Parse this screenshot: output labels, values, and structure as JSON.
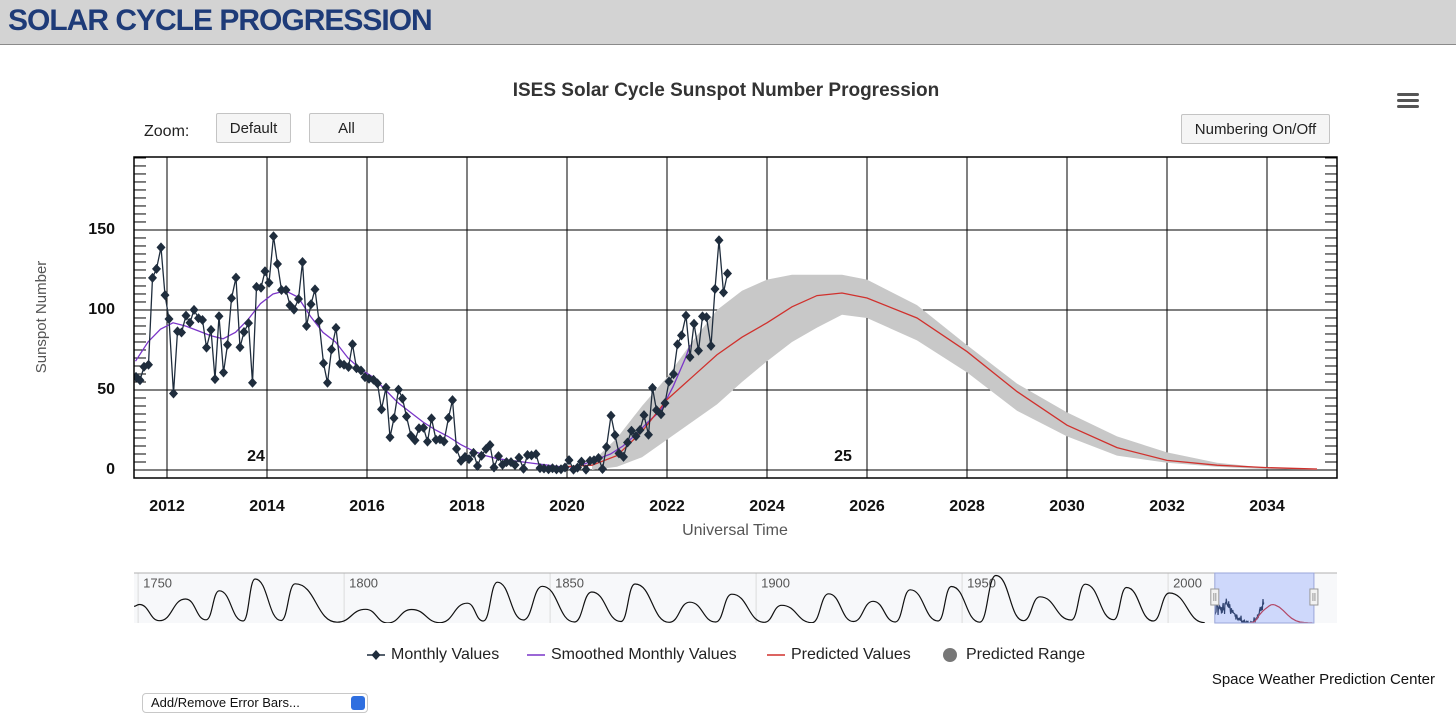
{
  "header": {
    "title": "SOLAR CYCLE PROGRESSION"
  },
  "chart_data": [
    {
      "type": "line",
      "title": "ISES Solar Cycle Sunspot Number Progression",
      "zoom_label": "Zoom:",
      "buttons": [
        "Default",
        "All",
        "Numbering On/Off"
      ],
      "y_label": "Sunspot Number",
      "x_label": "Universal Time",
      "annotations": [
        "24",
        "25"
      ],
      "credits": "Space Weather Prediction Center",
      "dropdown": "Add/Remove Error Bars...",
      "xlim": [
        2011.34,
        2035.4
      ],
      "xticks": [
        2012,
        2014,
        2016,
        2018,
        2020,
        2022,
        2024,
        2026,
        2028,
        2030,
        2032,
        2034
      ],
      "ylim": [
        -5,
        195.6
      ],
      "yticks": [
        0,
        50,
        100,
        150
      ],
      "grid": true,
      "series": [
        {
          "name": "Monthly Values",
          "color": "#1f2d3d",
          "x": [
            2011.38,
            2011.46,
            2011.54,
            2011.63,
            2011.71,
            2011.79,
            2011.88,
            2011.96,
            2012.04,
            2012.13,
            2012.21,
            2012.29,
            2012.38,
            2012.46,
            2012.54,
            2012.63,
            2012.71,
            2012.79,
            2012.88,
            2012.96,
            2013.04,
            2013.13,
            2013.21,
            2013.29,
            2013.38,
            2013.46,
            2013.54,
            2013.63,
            2013.71,
            2013.79,
            2013.88,
            2013.96,
            2014.04,
            2014.13,
            2014.21,
            2014.29,
            2014.38,
            2014.46,
            2014.54,
            2014.63,
            2014.71,
            2014.79,
            2014.88,
            2014.96,
            2015.04,
            2015.13,
            2015.21,
            2015.29,
            2015.38,
            2015.46,
            2015.54,
            2015.63,
            2015.71,
            2015.79,
            2015.88,
            2015.96,
            2016.04,
            2016.13,
            2016.21,
            2016.29,
            2016.38,
            2016.46,
            2016.54,
            2016.63,
            2016.71,
            2016.79,
            2016.88,
            2016.96,
            2017.04,
            2017.13,
            2017.21,
            2017.29,
            2017.38,
            2017.46,
            2017.54,
            2017.63,
            2017.71,
            2017.79,
            2017.88,
            2017.96,
            2018.04,
            2018.13,
            2018.21,
            2018.29,
            2018.38,
            2018.46,
            2018.54,
            2018.63,
            2018.71,
            2018.79,
            2018.88,
            2018.96,
            2019.04,
            2019.13,
            2019.21,
            2019.29,
            2019.38,
            2019.46,
            2019.54,
            2019.63,
            2019.71,
            2019.79,
            2019.88,
            2019.96,
            2020.04,
            2020.13,
            2020.21,
            2020.29,
            2020.38,
            2020.46,
            2020.54,
            2020.63,
            2020.71,
            2020.79,
            2020.88,
            2020.96,
            2021.04,
            2021.13,
            2021.21,
            2021.29,
            2021.38,
            2021.46,
            2021.54,
            2021.63,
            2021.71,
            2021.79,
            2021.88,
            2021.96,
            2022.04,
            2022.13,
            2022.21,
            2022.29,
            2022.38,
            2022.46,
            2022.54,
            2022.63,
            2022.71,
            2022.79,
            2022.88,
            2022.96,
            2023.04,
            2023.13,
            2023.21
          ],
          "values": [
            58.2,
            56.1,
            64.5,
            65.8,
            120.1,
            125.7,
            139.1,
            109.3,
            94.4,
            47.8,
            86.6,
            85.9,
            96.5,
            92.0,
            100.1,
            94.8,
            93.7,
            76.5,
            87.6,
            56.8,
            96.1,
            60.9,
            78.3,
            107.3,
            120.2,
            76.7,
            86.2,
            91.8,
            54.5,
            114.4,
            113.9,
            124.2,
            117.0,
            146.1,
            128.7,
            112.5,
            112.5,
            102.9,
            100.2,
            106.9,
            130.0,
            90.0,
            103.6,
            112.9,
            93.0,
            66.7,
            54.5,
            75.3,
            88.8,
            66.5,
            65.8,
            64.4,
            78.6,
            63.6,
            62.2,
            58.0,
            57.0,
            56.4,
            54.1,
            37.9,
            51.5,
            20.5,
            32.4,
            50.2,
            44.6,
            33.4,
            21.4,
            18.5,
            26.1,
            26.4,
            17.7,
            32.3,
            18.9,
            19.2,
            17.8,
            32.6,
            43.7,
            13.2,
            5.7,
            8.2,
            6.8,
            10.7,
            2.5,
            8.9,
            13.1,
            15.6,
            1.6,
            8.7,
            3.3,
            4.9,
            4.9,
            3.1,
            7.7,
            0.8,
            9.4,
            9.1,
            9.9,
            1.2,
            0.9,
            0.5,
            1.1,
            0.4,
            0.5,
            1.6,
            6.2,
            0.2,
            1.5,
            5.2,
            0.2,
            5.8,
            6.1,
            7.5,
            0.6,
            14.4,
            34.0,
            21.8,
            10.4,
            8.2,
            17.2,
            24.5,
            21.2,
            25.0,
            34.3,
            22.0,
            51.3,
            37.4,
            34.8,
            41.8,
            55.3,
            59.9,
            78.5,
            84.1,
            96.5,
            70.5,
            91.4,
            74.6,
            96.0,
            95.5,
            77.6,
            113.1,
            143.6,
            110.9,
            122.8
          ]
        },
        {
          "name": "Smoothed Monthly Values",
          "color": "#7a35c8",
          "x": [
            2011.37,
            2011.62,
            2011.87,
            2012.12,
            2012.37,
            2012.62,
            2012.87,
            2013.12,
            2013.37,
            2013.62,
            2013.87,
            2014.12,
            2014.37,
            2014.62,
            2014.87,
            2015.12,
            2015.37,
            2015.62,
            2015.87,
            2016.12,
            2016.37,
            2016.62,
            2016.87,
            2017.12,
            2017.37,
            2017.62,
            2017.87,
            2018.12,
            2018.37,
            2018.62,
            2018.87,
            2019.12,
            2019.37,
            2019.62,
            2019.87,
            2020.12,
            2020.37,
            2020.62,
            2020.87,
            2021.12,
            2021.37,
            2021.62,
            2021.87,
            2022.12,
            2022.37,
            2022.46
          ],
          "values": [
            68,
            80,
            88,
            92,
            90,
            87,
            84,
            82,
            86,
            94,
            104,
            110,
            112,
            108,
            96,
            86,
            80,
            70,
            63,
            58,
            50,
            42,
            36,
            30,
            25,
            21,
            16,
            12,
            9,
            7,
            6,
            5,
            4,
            3,
            2,
            2,
            4,
            7,
            10,
            15,
            22,
            30,
            37,
            52,
            70,
            78
          ]
        },
        {
          "name": "Predicted Values",
          "color": "#d0312d",
          "x": [
            2019.9,
            2020.5,
            2021,
            2021.5,
            2022,
            2022.5,
            2023,
            2023.5,
            2024,
            2024.5,
            2025,
            2025.5,
            2026,
            2027,
            2028,
            2029,
            2030,
            2031,
            2032,
            2033,
            2034,
            2035
          ],
          "values": [
            2,
            3,
            9,
            24,
            44,
            58,
            72,
            83,
            92,
            102,
            109,
            110.6,
            107.5,
            95,
            74,
            49,
            28,
            14,
            6,
            3,
            1.5,
            0.6
          ]
        },
        {
          "name": "Predicted Range",
          "color": "#c8c8c8",
          "legend_color": "#777777",
          "x": [
            2020.5,
            2021,
            2021.5,
            2022,
            2022.5,
            2023,
            2023.5,
            2024,
            2024.5,
            2025,
            2025.5,
            2026,
            2027,
            2028,
            2029,
            2030,
            2031,
            2032,
            2033,
            2034,
            2035
          ],
          "low": [
            0,
            2,
            8,
            19,
            30,
            41,
            55,
            68,
            80,
            89,
            97,
            95,
            81,
            61,
            37,
            21,
            9,
            4.5,
            2,
            0.5,
            0
          ],
          "high": [
            5,
            20,
            40,
            58,
            80,
            100,
            112,
            119,
            122,
            122,
            122,
            119,
            103,
            78,
            54,
            36,
            21,
            11,
            4.5,
            1.3,
            0.5
          ]
        }
      ]
    },
    {
      "type": "line",
      "xlim": [
        1749,
        2041
      ],
      "ylim": [
        0,
        300
      ],
      "xticks": [
        1750,
        1800,
        1850,
        1900,
        1950,
        2000
      ],
      "series": [
        {
          "color": "#111111",
          "x": [
            1749,
            1750.3,
            1755.2,
            1761.5,
            1766.5,
            1769.7,
            1775.5,
            1778.4,
            1784.7,
            1788.1,
            1798.3,
            1805.2,
            1810.6,
            1816.4,
            1823.3,
            1829.9,
            1833.8,
            1837.2,
            1843.5,
            1848.1,
            1855.9,
            1860.1,
            1867.2,
            1870.6,
            1878.9,
            1883.9,
            1890.2,
            1894.1,
            1902.0,
            1906.2,
            1913.6,
            1917.6,
            1923.6,
            1928.4,
            1933.8,
            1937.4,
            1944.2,
            1947.4,
            1954.3,
            1958.2,
            1964.9,
            1968.9,
            1976.5,
            1979.9,
            1986.8,
            1989.9,
            1996.4,
            2000.3,
            2008.9
          ],
          "values": [
            100,
            111,
            14,
            144,
            19,
            193,
            12,
            264,
            15,
            235,
            5,
            82,
            0,
            81,
            2,
            119,
            12,
            245,
            18,
            220,
            6,
            186,
            9,
            234,
            4,
            125,
            6,
            173,
            4,
            106,
            2,
            175,
            9,
            130,
            6,
            199,
            12,
            219,
            5,
            285,
            14,
            157,
            18,
            233,
            20,
            213,
            12,
            180,
            2
          ]
        }
      ]
    }
  ]
}
